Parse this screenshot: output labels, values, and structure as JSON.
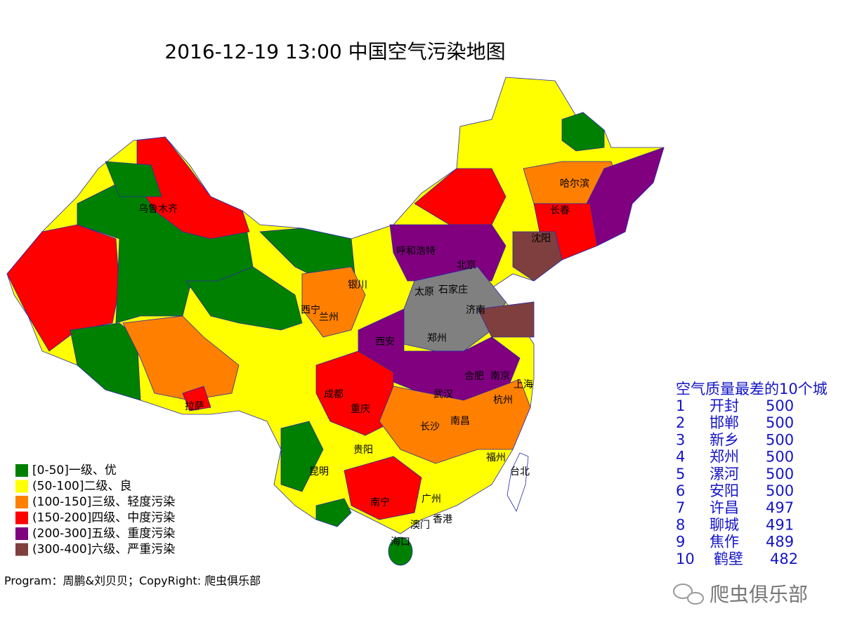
{
  "title": "2016-12-19 13:00 中国空气污染地图",
  "legend": [
    {
      "label": "[0-50]一级、优",
      "color": "#008000"
    },
    {
      "label": "(50-100]二级、良",
      "color": "#ffff00"
    },
    {
      "label": "(100-150]三级、轻度污染",
      "color": "#ff8000"
    },
    {
      "label": "(150-200]四级、中度污染",
      "color": "#ff0000"
    },
    {
      "label": "(200-300]五级、重度污染",
      "color": "#800080"
    },
    {
      "label": "(300-400]六级、严重污染",
      "color": "#7f3f3f"
    }
  ],
  "cities": [
    "哈尔滨",
    "长春",
    "沈阳",
    "呼和浩特",
    "北京",
    "银川",
    "太原",
    "石家庄",
    "济南",
    "西宁",
    "兰州",
    "西安",
    "郑州",
    "合肥",
    "南京",
    "上海",
    "成都",
    "武汉",
    "杭州",
    "重庆",
    "长沙",
    "南昌",
    "拉萨",
    "贵阳",
    "福州",
    "昆明",
    "台北",
    "南宁",
    "广州",
    "澳门",
    "香港",
    "海口",
    "乌鲁木齐"
  ],
  "ranking": {
    "title": "空气质量最差的10个城",
    "rows": [
      [
        1,
        "开封",
        500
      ],
      [
        2,
        "邯郸",
        500
      ],
      [
        3,
        "新乡",
        500
      ],
      [
        4,
        "郑州",
        500
      ],
      [
        5,
        "漯河",
        500
      ],
      [
        6,
        "安阳",
        500
      ],
      [
        7,
        "许昌",
        497
      ],
      [
        8,
        "聊城",
        491
      ],
      [
        9,
        "焦作",
        489
      ],
      [
        10,
        "鹤壁",
        482
      ]
    ]
  },
  "footer": "Program：周鹏&刘贝贝；CopyRight: 爬虫俱乐部",
  "watermark": "爬虫俱乐部"
}
